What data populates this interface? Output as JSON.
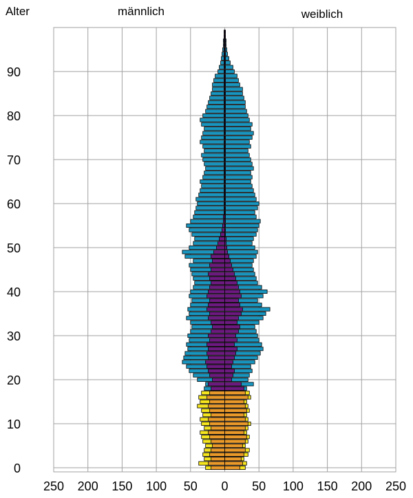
{
  "chart_data": {
    "type": "bar",
    "subtype": "population-pyramid",
    "labels": {
      "age_axis": "Alter",
      "male": "männlich",
      "female": "weiblich"
    },
    "xlim": [
      -250,
      250
    ],
    "ylim": [
      0,
      99
    ],
    "xticks": [
      250,
      200,
      150,
      100,
      50,
      0,
      50,
      100,
      150,
      200,
      250
    ],
    "yticks": [
      0,
      10,
      20,
      30,
      40,
      50,
      60,
      70,
      80,
      90
    ],
    "grid": true,
    "legend": "none",
    "colors": {
      "under18": "#e8992a",
      "under18_outer": "#f5e51e",
      "adult": "#6d1a80",
      "adult_outer": "#1996c0",
      "grid": "#a0a0a0",
      "bar_border": "#000000"
    },
    "ages": [
      0,
      1,
      2,
      3,
      4,
      5,
      6,
      7,
      8,
      9,
      10,
      11,
      12,
      13,
      14,
      15,
      16,
      17,
      18,
      19,
      20,
      21,
      22,
      23,
      24,
      25,
      26,
      27,
      28,
      29,
      30,
      31,
      32,
      33,
      34,
      35,
      36,
      37,
      38,
      39,
      40,
      41,
      42,
      43,
      44,
      45,
      46,
      47,
      48,
      49,
      50,
      51,
      52,
      53,
      54,
      55,
      56,
      57,
      58,
      59,
      60,
      61,
      62,
      63,
      64,
      65,
      66,
      67,
      68,
      69,
      70,
      71,
      72,
      73,
      74,
      75,
      76,
      77,
      78,
      79,
      80,
      81,
      82,
      83,
      84,
      85,
      86,
      87,
      88,
      89,
      90,
      91,
      92,
      93,
      94,
      95,
      96,
      97,
      98,
      99
    ],
    "series": [
      {
        "name": "male_inner",
        "values": [
          20,
          24,
          20,
          22,
          20,
          18,
          20,
          22,
          24,
          20,
          22,
          24,
          20,
          22,
          24,
          22,
          26,
          22,
          20,
          24,
          18,
          22,
          24,
          26,
          28,
          24,
          26,
          24,
          26,
          22,
          24,
          20,
          18,
          20,
          24,
          22,
          26,
          24,
          22,
          26,
          24,
          22,
          20,
          22,
          24,
          20,
          22,
          18,
          20,
          16,
          12,
          10,
          8,
          6,
          4,
          3,
          2,
          2,
          1,
          1,
          1,
          1,
          1,
          1,
          1,
          1,
          1,
          1,
          1,
          1,
          1,
          1,
          1,
          1,
          1,
          1,
          1,
          1,
          1,
          1,
          1,
          1,
          1,
          1,
          1,
          1,
          1,
          1,
          1,
          1,
          1,
          1,
          1,
          1,
          1,
          1,
          1,
          1,
          1,
          1
        ]
      },
      {
        "name": "male_total",
        "values": [
          28,
          38,
          30,
          32,
          30,
          28,
          32,
          34,
          36,
          30,
          34,
          36,
          32,
          34,
          40,
          36,
          38,
          34,
          30,
          28,
          40,
          46,
          52,
          56,
          62,
          60,
          58,
          54,
          56,
          52,
          54,
          50,
          48,
          50,
          56,
          52,
          54,
          50,
          48,
          52,
          50,
          46,
          44,
          46,
          48,
          50,
          52,
          46,
          58,
          62,
          52,
          46,
          44,
          48,
          52,
          56,
          50,
          46,
          44,
          42,
          40,
          42,
          38,
          36,
          34,
          36,
          32,
          30,
          28,
          30,
          32,
          34,
          30,
          32,
          36,
          34,
          32,
          30,
          34,
          36,
          32,
          28,
          26,
          24,
          22,
          20,
          18,
          18,
          16,
          14,
          10,
          8,
          6,
          5,
          4,
          3,
          2,
          2,
          1,
          1
        ]
      },
      {
        "name": "female_inner",
        "values": [
          22,
          26,
          24,
          28,
          30,
          26,
          30,
          32,
          28,
          30,
          34,
          30,
          28,
          32,
          30,
          28,
          34,
          30,
          28,
          24,
          10,
          12,
          14,
          10,
          12,
          14,
          16,
          18,
          14,
          18,
          16,
          20,
          22,
          18,
          20,
          24,
          26,
          22,
          20,
          24,
          22,
          20,
          18,
          16,
          14,
          12,
          10,
          8,
          6,
          4,
          3,
          2,
          2,
          1,
          1,
          1,
          1,
          1,
          1,
          1,
          1,
          1,
          1,
          1,
          1,
          1,
          1,
          1,
          1,
          1,
          1,
          1,
          1,
          1,
          1,
          1,
          1,
          1,
          1,
          1,
          1,
          1,
          1,
          1,
          1,
          1,
          1,
          1,
          1,
          1,
          1,
          1,
          1,
          1,
          1,
          1,
          1,
          1,
          1,
          1
        ]
      },
      {
        "name": "female_total",
        "values": [
          30,
          32,
          28,
          34,
          36,
          30,
          34,
          36,
          32,
          34,
          38,
          34,
          32,
          36,
          34,
          32,
          38,
          36,
          32,
          42,
          34,
          36,
          40,
          38,
          44,
          48,
          52,
          56,
          54,
          50,
          48,
          46,
          44,
          50,
          56,
          60,
          66,
          54,
          48,
          56,
          62,
          54,
          48,
          46,
          44,
          42,
          40,
          42,
          46,
          48,
          44,
          40,
          42,
          46,
          48,
          50,
          52,
          46,
          44,
          48,
          50,
          46,
          44,
          42,
          40,
          38,
          40,
          38,
          42,
          40,
          38,
          36,
          34,
          38,
          36,
          40,
          42,
          38,
          40,
          36,
          34,
          32,
          30,
          30,
          28,
          26,
          26,
          22,
          20,
          18,
          14,
          12,
          8,
          6,
          4,
          3,
          2,
          2,
          1,
          1
        ]
      }
    ]
  }
}
